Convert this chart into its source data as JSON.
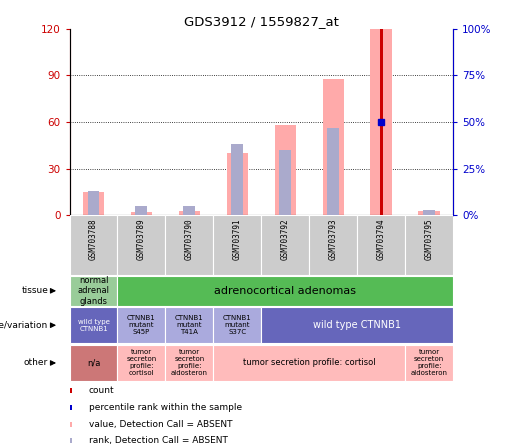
{
  "title": "GDS3912 / 1559827_at",
  "samples": [
    "GSM703788",
    "GSM703789",
    "GSM703790",
    "GSM703791",
    "GSM703792",
    "GSM703793",
    "GSM703794",
    "GSM703795"
  ],
  "left_ylim": [
    0,
    120
  ],
  "right_ylim": [
    0,
    100
  ],
  "left_yticks": [
    0,
    30,
    60,
    90,
    120
  ],
  "right_yticks": [
    0,
    25,
    50,
    75,
    100
  ],
  "left_yticklabels": [
    "0",
    "30",
    "60",
    "90",
    "120"
  ],
  "right_yticklabels": [
    "0%",
    "25%",
    "50%",
    "75%",
    "100%"
  ],
  "count_values": [
    0,
    0,
    0,
    0,
    0,
    0,
    120,
    0
  ],
  "percentile_values": [
    0,
    0,
    0,
    0,
    0,
    0,
    50,
    0
  ],
  "pink_bar_values": [
    15,
    2,
    3,
    40,
    58,
    88,
    120,
    3
  ],
  "lavender_bar_values": [
    13,
    5,
    5,
    38,
    35,
    47,
    0,
    3
  ],
  "count_color": "#cc0000",
  "percentile_color": "#0000cc",
  "pink_color": "#ffaaaa",
  "lavender_color": "#aaaacc",
  "grid_color": "black",
  "grid_style": "dotted",
  "grid_vals": [
    30,
    60,
    90
  ],
  "tissue_spans": [
    {
      "start": 0,
      "end": 1,
      "text": "normal\nadrenal\nglands",
      "color": "#99cc99",
      "fontsize": 6
    },
    {
      "start": 1,
      "end": 8,
      "text": "adrenocortical adenomas",
      "color": "#55bb55",
      "fontsize": 8
    }
  ],
  "geno_spans": [
    {
      "start": 0,
      "end": 1,
      "text": "wild type\nCTNNB1",
      "color": "#6666bb",
      "fontsize": 5,
      "text_color": "white"
    },
    {
      "start": 1,
      "end": 2,
      "text": "CTNNB1\nmutant\nS45P",
      "color": "#aaaadd",
      "fontsize": 5,
      "text_color": "black"
    },
    {
      "start": 2,
      "end": 3,
      "text": "CTNNB1\nmutant\nT41A",
      "color": "#aaaadd",
      "fontsize": 5,
      "text_color": "black"
    },
    {
      "start": 3,
      "end": 4,
      "text": "CTNNB1\nmutant\nS37C",
      "color": "#aaaadd",
      "fontsize": 5,
      "text_color": "black"
    },
    {
      "start": 4,
      "end": 8,
      "text": "wild type CTNNB1",
      "color": "#6666bb",
      "fontsize": 7,
      "text_color": "white"
    }
  ],
  "other_spans": [
    {
      "start": 0,
      "end": 1,
      "text": "n/a",
      "color": "#cc7777",
      "fontsize": 6,
      "text_color": "black"
    },
    {
      "start": 1,
      "end": 2,
      "text": "tumor\nsecreton\nprofile:\ncortisol",
      "color": "#ffbbbb",
      "fontsize": 5,
      "text_color": "black"
    },
    {
      "start": 2,
      "end": 3,
      "text": "tumor\nsecreton\nprofile:\naldosteron",
      "color": "#ffbbbb",
      "fontsize": 5,
      "text_color": "black"
    },
    {
      "start": 3,
      "end": 7,
      "text": "tumor secretion profile: cortisol",
      "color": "#ffbbbb",
      "fontsize": 6,
      "text_color": "black"
    },
    {
      "start": 7,
      "end": 8,
      "text": "tumor\nsecreton\nprofile:\naldosteron",
      "color": "#ffbbbb",
      "fontsize": 5,
      "text_color": "black"
    }
  ],
  "row_labels": [
    "tissue",
    "genotype/variation",
    "other"
  ],
  "legend_items": [
    {
      "color": "#cc0000",
      "label": "count"
    },
    {
      "color": "#0000cc",
      "label": "percentile rank within the sample"
    },
    {
      "color": "#ffaaaa",
      "label": "value, Detection Call = ABSENT"
    },
    {
      "color": "#aaaacc",
      "label": "rank, Detection Call = ABSENT"
    }
  ]
}
